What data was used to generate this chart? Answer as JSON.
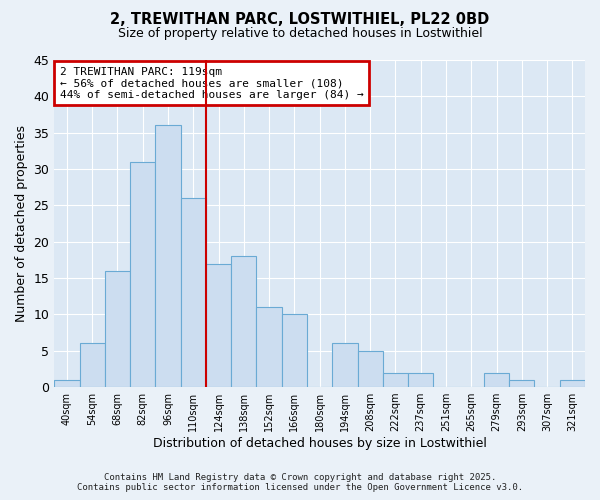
{
  "title": "2, TREWITHAN PARC, LOSTWITHIEL, PL22 0BD",
  "subtitle": "Size of property relative to detached houses in Lostwithiel",
  "xlabel": "Distribution of detached houses by size in Lostwithiel",
  "ylabel": "Number of detached properties",
  "bin_labels": [
    "40sqm",
    "54sqm",
    "68sqm",
    "82sqm",
    "96sqm",
    "110sqm",
    "124sqm",
    "138sqm",
    "152sqm",
    "166sqm",
    "180sqm",
    "194sqm",
    "208sqm",
    "222sqm",
    "237sqm",
    "251sqm",
    "265sqm",
    "279sqm",
    "293sqm",
    "307sqm",
    "321sqm"
  ],
  "bar_values": [
    1,
    6,
    16,
    31,
    36,
    26,
    17,
    18,
    11,
    10,
    0,
    6,
    5,
    2,
    2,
    0,
    0,
    2,
    1,
    0,
    1
  ],
  "bar_color": "#ccddf0",
  "bar_edge_color": "#6aaad4",
  "vline_color": "#cc0000",
  "annotation_title": "2 TREWITHAN PARC: 119sqm",
  "annotation_line1": "← 56% of detached houses are smaller (108)",
  "annotation_line2": "44% of semi-detached houses are larger (84) →",
  "annotation_box_color": "#cc0000",
  "ylim": [
    0,
    45
  ],
  "yticks": [
    0,
    5,
    10,
    15,
    20,
    25,
    30,
    35,
    40,
    45
  ],
  "footer1": "Contains HM Land Registry data © Crown copyright and database right 2025.",
  "footer2": "Contains public sector information licensed under the Open Government Licence v3.0.",
  "bg_color": "#eaf1f8",
  "plot_bg_color": "#dce8f4"
}
